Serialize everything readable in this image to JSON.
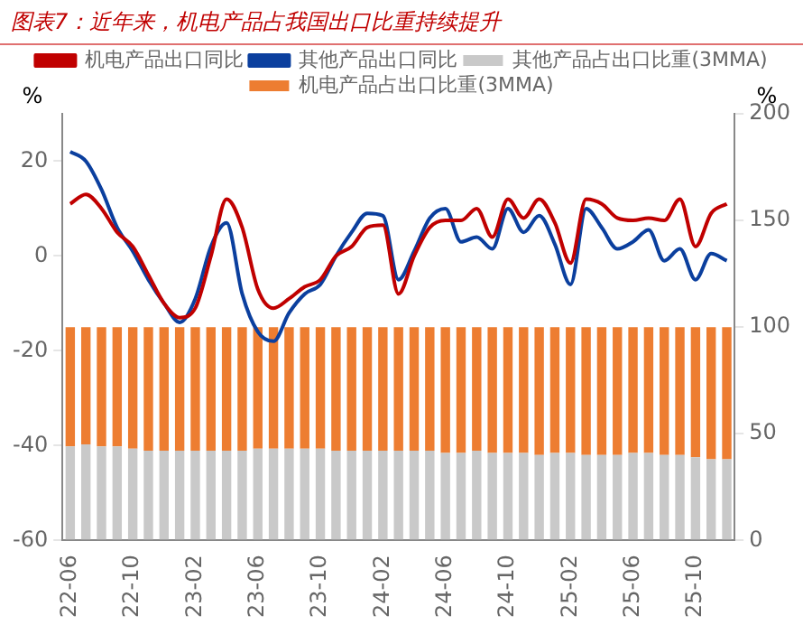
{
  "chart_data": {
    "type": "bar",
    "title": "图表7：近年来，机电产品占我国出口比重持续提升",
    "ylabel": "%",
    "y2label": "%",
    "categories": [
      "22-06",
      null,
      null,
      null,
      "22-10",
      null,
      null,
      null,
      "23-02",
      null,
      null,
      null,
      "23-06",
      null,
      null,
      null,
      "23-10",
      null,
      null,
      null,
      "24-02",
      null,
      null,
      null,
      "24-06",
      null,
      null,
      null,
      "24-10",
      null,
      null,
      null,
      "25-02",
      null,
      null,
      null,
      "25-06",
      null,
      null,
      null,
      "25-10",
      null,
      null
    ],
    "stacked": true,
    "series": [
      {
        "name": "其他产品占出口比重(3MMA)",
        "color": "#c9c9c9",
        "axis": "y2",
        "values": [
          44,
          45,
          44,
          44,
          43,
          42,
          42,
          42,
          42,
          42,
          42,
          42,
          43,
          43,
          43,
          43,
          43,
          42,
          42,
          42,
          42,
          42,
          42,
          42,
          41,
          41,
          42,
          41,
          41,
          41,
          40,
          41,
          41,
          40,
          40,
          40,
          41,
          41,
          40,
          40,
          39,
          38,
          38
        ]
      },
      {
        "name": "机电产品占出口比重(3MMA)",
        "color": "#ed7d31",
        "axis": "y2",
        "values": [
          56,
          55,
          56,
          56,
          57,
          58,
          58,
          58,
          58,
          58,
          58,
          58,
          57,
          57,
          57,
          57,
          57,
          58,
          58,
          58,
          58,
          58,
          58,
          58,
          59,
          59,
          58,
          59,
          59,
          59,
          60,
          59,
          59,
          60,
          60,
          60,
          59,
          59,
          60,
          60,
          61,
          62,
          62
        ]
      },
      {
        "name": "机电产品出口同比",
        "type": "line",
        "color": "#c00000",
        "values": [
          11,
          13,
          10,
          5,
          2,
          -4,
          -10,
          -13,
          -11,
          0,
          12,
          6,
          -7,
          -11,
          -9,
          -6.5,
          -5,
          0,
          2,
          6,
          6.5,
          -8,
          0,
          6,
          7.5,
          7.5,
          10,
          4,
          12,
          8,
          12,
          7,
          -1.5,
          12,
          11,
          8,
          7.5,
          8,
          7.5,
          12,
          2,
          9,
          11
        ]
      },
      {
        "name": "其他产品出口同比",
        "type": "line",
        "color": "#0b3f9e",
        "values": [
          22,
          20,
          14,
          6,
          1,
          -5,
          -10,
          -14,
          -9,
          2,
          7,
          -8,
          -16,
          -18,
          -12,
          -8,
          -6,
          0,
          5,
          9,
          8.5,
          -5,
          1,
          8,
          10,
          3,
          4,
          1.5,
          10,
          5,
          8.5,
          2.5,
          -6,
          10,
          6,
          1.5,
          3,
          5.5,
          -1,
          1.5,
          -5,
          0.5,
          -1
        ]
      }
    ],
    "ylim": [
      -60,
      30
    ],
    "yticks": [
      -60,
      -40,
      -20,
      0,
      20
    ],
    "y2lim": [
      0,
      200
    ],
    "y2ticks": [
      0,
      50,
      100,
      150,
      200
    ],
    "grid": false,
    "legend": "top",
    "marker": "none",
    "line_style": "solid"
  }
}
